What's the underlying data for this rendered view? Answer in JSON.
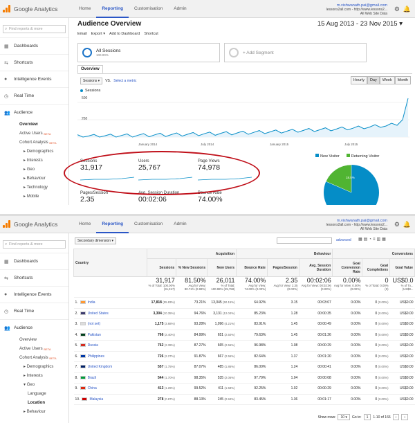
{
  "app": {
    "name": "Google Analytics"
  },
  "nav": [
    "Home",
    "Reporting",
    "Customisation",
    "Admin"
  ],
  "account": {
    "email": "m.vishwanath.pai@gmail.com",
    "site1": "lessons2all.com - http://www.lessons2...",
    "site2": "All Web Site Data",
    "site1b": "lessons2all.com - http://www.lessons2...",
    "site2b": "All Web Site Data"
  },
  "sidebar": {
    "search_placeholder": "Find reports & more",
    "items": [
      "Dashboards",
      "Shortcuts",
      "Intelligence Events",
      "Real Time",
      "Audience"
    ],
    "audience_sub": [
      "Overview",
      "Active Users",
      "Cohort Analysis"
    ],
    "beta": "BETA",
    "audience_sub2": [
      "Demographics",
      "Interests",
      "Geo",
      "Behaviour",
      "Technology",
      "Mobile"
    ],
    "geo_sub": [
      "Language",
      "Location"
    ],
    "behaviour2": "Behaviour"
  },
  "overview": {
    "title": "Audience Overview",
    "dates": "15 Aug 2013 - 23 Nov 2015",
    "actions": [
      "Email",
      "Export",
      "Add to Dashboard",
      "Shortcut"
    ],
    "segment_all": "All Sessions",
    "segment_all_pct": "100.00%",
    "segment_add": "+ Add Segment",
    "tab": "Overview",
    "metric": "Sessions",
    "vs": "VS.",
    "select_metric": "Select a metric",
    "granularity": [
      "Hourly",
      "Day",
      "Week",
      "Month"
    ],
    "legend": "Sessions",
    "y_ticks": [
      "500",
      "250"
    ],
    "x_ticks": [
      "January 2014",
      "July 2014",
      "January 2015",
      "July 2015"
    ],
    "metrics": [
      {
        "label": "Sessions",
        "value": "31,917"
      },
      {
        "label": "Users",
        "value": "25,767"
      },
      {
        "label": "Page Views",
        "value": "74,978"
      },
      {
        "label": "Pages/Session",
        "value": "2.35"
      },
      {
        "label": "Avg. Session Duration",
        "value": "00:02:06"
      },
      {
        "label": "Bounce Rate",
        "value": "74.00%"
      }
    ],
    "pie": {
      "new_label": "New Visitor",
      "returning_label": "Returning Visitor",
      "returning_pct_label": "18.5%",
      "returning_fraction": 0.185,
      "new_color": "#058dc7",
      "returning_color": "#50b432"
    }
  },
  "geo_table": {
    "secondary": "Secondary dimension",
    "advanced": "advanced",
    "groups": [
      "Acquisition",
      "Behaviour",
      "Conversions"
    ],
    "columns": [
      "Country",
      "Sessions",
      "% New Sessions",
      "New Users",
      "Bounce Rate",
      "Pages/Session",
      "Avg. Session Duration",
      "Goal Conversion Rate",
      "Goal Completions",
      "Goal Value"
    ],
    "totals": {
      "values": [
        "31,917",
        "81.50%",
        "26,011",
        "74.00%",
        "2.35",
        "00:02:06",
        "0.00%",
        "0",
        "US$0.0"
      ],
      "notes": [
        "% of Total: 100.00% (31,917)",
        "Avg for View: 80.71% (0.98%)",
        "% of Total: 100.98% (25,758)",
        "Avg for View: 74.00% (0.00%)",
        "Avg for View: 2.35 (0.00%)",
        "Avg for View: 00:02:06 (0.00%)",
        "Avg for View: 0.00% (0.00%)",
        "% of Total: 0.00% (0)",
        "% of To... (US$0..."
      ]
    },
    "rows": [
      {
        "n": "1.",
        "country": "India",
        "sessions": "17,818",
        "sp": "(55.83%)",
        "newp": "73.21%",
        "nu": "13,045",
        "nup": "(50.15%)",
        "br": "64.92%",
        "pps": "3.15",
        "dur": "00:03:07",
        "gcr": "0.00%",
        "gc": "0",
        "gcp": "(0.00%)",
        "gv": "US$0.00"
      },
      {
        "n": "2.",
        "country": "United States",
        "sessions": "3,304",
        "sp": "(10.35%)",
        "newp": "94.76%",
        "nu": "3,131",
        "nup": "(12.04%)",
        "br": "85.23%",
        "pps": "1.28",
        "dur": "00:00:35",
        "gcr": "0.00%",
        "gc": "0",
        "gcp": "(0.00%)",
        "gv": "US$0.00"
      },
      {
        "n": "3.",
        "country": "(not set)",
        "sessions": "1,175",
        "sp": "(3.68%)",
        "newp": "93.28%",
        "nu": "1,096",
        "nup": "(4.21%)",
        "br": "83.91%",
        "pps": "1.45",
        "dur": "00:00:49",
        "gcr": "0.00%",
        "gc": "0",
        "gcp": "(0.00%)",
        "gv": "US$0.00"
      },
      {
        "n": "4.",
        "country": "Pakistan",
        "sessions": "766",
        "sp": "(2.40%)",
        "newp": "84.99%",
        "nu": "651",
        "nup": "(2.50%)",
        "br": "79.63%",
        "pps": "1.45",
        "dur": "00:01:26",
        "gcr": "0.00%",
        "gc": "0",
        "gcp": "(0.00%)",
        "gv": "US$0.00"
      },
      {
        "n": "5.",
        "country": "Russia",
        "sessions": "762",
        "sp": "(2.39%)",
        "newp": "87.27%",
        "nu": "665",
        "nup": "(2.56%)",
        "br": "96.98%",
        "pps": "1.08",
        "dur": "00:00:29",
        "gcr": "0.00%",
        "gc": "0",
        "gcp": "(0.00%)",
        "gv": "US$0.00"
      },
      {
        "n": "6.",
        "country": "Philippines",
        "sessions": "726",
        "sp": "(2.27%)",
        "newp": "91.87%",
        "nu": "667",
        "nup": "(2.56%)",
        "br": "82.64%",
        "pps": "1.37",
        "dur": "00:01:20",
        "gcr": "0.00%",
        "gc": "0",
        "gcp": "(0.00%)",
        "gv": "US$0.00"
      },
      {
        "n": "7.",
        "country": "United Kingdom",
        "sessions": "557",
        "sp": "(1.75%)",
        "newp": "87.07%",
        "nu": "485",
        "nup": "(1.86%)",
        "br": "86.00%",
        "pps": "1.24",
        "dur": "00:00:41",
        "gcr": "0.00%",
        "gc": "0",
        "gcp": "(0.00%)",
        "gv": "US$0.00"
      },
      {
        "n": "8.",
        "country": "Brazil",
        "sessions": "544",
        "sp": "(1.70%)",
        "newp": "98.35%",
        "nu": "535",
        "nup": "(2.06%)",
        "br": "97.79%",
        "pps": "1.04",
        "dur": "00:00:08",
        "gcr": "0.00%",
        "gc": "0",
        "gcp": "(0.00%)",
        "gv": "US$0.00"
      },
      {
        "n": "9.",
        "country": "China",
        "sessions": "413",
        "sp": "(1.29%)",
        "newp": "99.52%",
        "nu": "411",
        "nup": "(1.58%)",
        "br": "92.25%",
        "pps": "1.02",
        "dur": "00:00:29",
        "gcr": "0.00%",
        "gc": "0",
        "gcp": "(0.00%)",
        "gv": "US$0.00"
      },
      {
        "n": "10.",
        "country": "Malaysia",
        "sessions": "278",
        "sp": "(0.87%)",
        "newp": "88.13%",
        "nu": "245",
        "nup": "(0.94%)",
        "br": "83.45%",
        "pps": "1.36",
        "dur": "00:01:17",
        "gcr": "0.00%",
        "gc": "0",
        "gcp": "(0.00%)",
        "gv": "US$0.00"
      }
    ],
    "pager": {
      "show_rows": "Show rows:",
      "rows": "10",
      "goto": "Go to:",
      "goto_val": "1",
      "range": "1-10 of 166"
    }
  },
  "chart_data": {
    "type": "line",
    "title": "",
    "series": [
      {
        "name": "Sessions",
        "values": [
          4,
          6,
          5,
          8,
          10,
          9,
          12,
          14,
          13,
          16,
          18,
          17,
          20,
          24,
          22,
          26,
          28,
          25,
          30,
          34,
          31,
          36,
          40,
          38,
          42,
          46,
          44,
          48,
          52,
          50,
          56,
          60,
          58,
          64,
          70,
          66,
          72,
          78,
          75,
          82,
          90,
          86,
          94,
          100,
          96,
          104,
          110,
          106,
          116,
          124,
          118,
          130,
          140,
          134,
          148,
          160,
          150,
          170,
          190,
          240,
          560
        ]
      }
    ],
    "x_labels": [
      "January 2014",
      "July 2014",
      "January 2015",
      "July 2015"
    ],
    "ylim": [
      0,
      600
    ]
  }
}
